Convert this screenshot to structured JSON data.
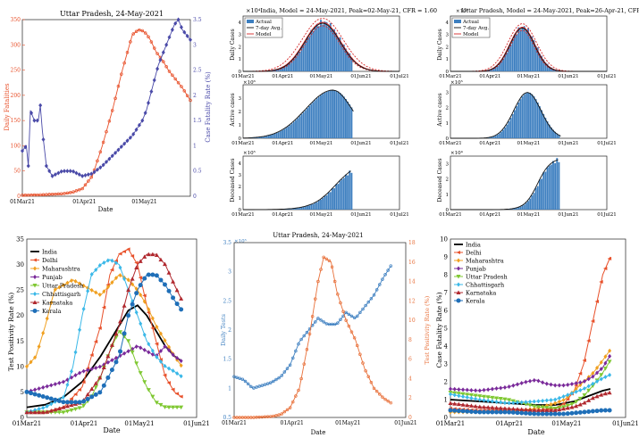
{
  "panel_a": {
    "title": "Uttar Pradesh, 24-May-2021",
    "xlabel": "Date",
    "ylabel_left": "Daily Fatalities",
    "ylabel_right": "Case Fatality Rate (%)",
    "xticks": [
      "01Mar21",
      "01Apr21",
      "01May21"
    ],
    "yticks_left": [
      "0",
      "50",
      "100",
      "150",
      "200",
      "250",
      "300",
      "350"
    ],
    "yticks_right": [
      "0",
      "0.5",
      "1",
      "1.5",
      "2",
      "2.5",
      "3",
      "3.5"
    ]
  },
  "panel_b": {
    "top_title": "×10⁴India, Model = 24-May-2021, Peak=02-May-21, CFR = 1.60",
    "sub_ylabels": [
      "Daily Cases",
      "Active cases",
      "Deceased Cases"
    ],
    "exponents": [
      "×10⁶",
      "×10⁵"
    ],
    "yticks_top": [
      "0",
      "1",
      "2",
      "3",
      "4"
    ],
    "yticks_mid": [
      "0",
      "1",
      "2",
      "3"
    ],
    "yticks_bot": [
      "0",
      "1",
      "2",
      "3",
      "4"
    ],
    "xticks": [
      "01Mar21",
      "01Apr21",
      "01May21",
      "01Jun21",
      "01Jul21"
    ],
    "legend": [
      "Actual",
      "7-day Avg.",
      "Model"
    ]
  },
  "panel_c": {
    "top_title": "Uttar Pradesh, Model = 24-May-2021, Peak=26-Apr-21, CFR = 3.16",
    "top_exponent": "×10⁴",
    "sub_ylabels": [
      "Daily Cases",
      "Active cases",
      "Deceased Cases"
    ],
    "exponents": [
      "×10⁵",
      "×10⁴"
    ],
    "yticks_top": [
      "0",
      "1",
      "2",
      "3",
      "4"
    ],
    "yticks_mid": [
      "0",
      "1",
      "2",
      "3"
    ],
    "yticks_bot": [
      "0",
      "1",
      "2",
      "3"
    ],
    "xticks": [
      "01Mar21",
      "01Apr21",
      "01May21",
      "01Jun21",
      "01Jul21"
    ],
    "legend": [
      "Actual",
      "7-day Avg.",
      "Model"
    ]
  },
  "panel_d": {
    "xlabel": "Date",
    "ylabel": "Test Positivity Rate (%)",
    "xticks": [
      "01Mar21",
      "01Apr21",
      "01May21",
      "01Jun21"
    ],
    "yticks": [
      "0",
      "5",
      "10",
      "15",
      "20",
      "25",
      "30",
      "35"
    ]
  },
  "panel_e": {
    "title": "Uttar Pradesh, 24-May-2021",
    "xlabel": "Date",
    "ylabel_left": "Daily Tests",
    "ylabel_right": "Test Positivity Rate (%)",
    "exponent": "×10⁵",
    "xticks": [
      "01Mar21",
      "01Apr21",
      "01May21",
      "01Jun21"
    ],
    "yticks_left": [
      "0.5",
      "1",
      "1.5",
      "2",
      "2.5",
      "3",
      "3.5"
    ],
    "yticks_right": [
      "0",
      "2",
      "4",
      "6",
      "8",
      "10",
      "12",
      "14",
      "16",
      "18"
    ]
  },
  "panel_f": {
    "xlabel": "Date",
    "ylabel": "Case Fatality Rate (%)",
    "xticks": [
      "01Mar21",
      "01Apr21",
      "01May21",
      "01Jun21"
    ],
    "yticks": [
      "0",
      "1",
      "2",
      "3",
      "4",
      "5",
      "6",
      "7",
      "8",
      "9",
      "10"
    ]
  },
  "colors": {
    "India": "#000000",
    "Delhi": "#e8502a",
    "Maharashtra": "#f0a020",
    "Punjab": "#7a2a9a",
    "Uttar Pradesh": "#7fc832",
    "Chhattisgarh": "#3ab8e8",
    "Karnataka": "#b0282e",
    "Kerala": "#1f6fb8",
    "fatality": "#e8502a",
    "cfr": "#4a4aa8",
    "bar": "#3d7fc0",
    "model": "#d62728",
    "tests": "#3d7fc0",
    "tpr": "#e8703a"
  },
  "chart_data": [
    {
      "type": "line",
      "title": "Uttar Pradesh, 24-May-2021",
      "xlabel": "Date",
      "ylabel": "Daily Fatalities",
      "y2label": "Case Fatality Rate (%)",
      "x_range": [
        "2021-03-01",
        "2021-05-24"
      ],
      "ylim": [
        0,
        350
      ],
      "y2lim": [
        0,
        3.5
      ],
      "series": [
        {
          "name": "",
          "axis": "left",
          "day": [
            0,
            10,
            20,
            25,
            30,
            35,
            40,
            45,
            50,
            55,
            58,
            60,
            62,
            64,
            67,
            70,
            73,
            76,
            80,
            84
          ],
          "values": [
            2,
            3,
            5,
            8,
            15,
            40,
            100,
            170,
            250,
            320,
            330,
            328,
            322,
            310,
            285,
            270,
            250,
            235,
            215,
            190
          ]
        },
        {
          "name": "",
          "axis": "right",
          "day": [
            0,
            2,
            3,
            4,
            6,
            8,
            9,
            10,
            12,
            15,
            20,
            25,
            30,
            35,
            40,
            45,
            50,
            55,
            60,
            62,
            64,
            66,
            68,
            70,
            72,
            74,
            76,
            78,
            80,
            82,
            84
          ],
          "values": [
            0.9,
            1.0,
            0.6,
            1.7,
            1.5,
            1.5,
            1.8,
            1.3,
            0.6,
            0.4,
            0.5,
            0.5,
            0.4,
            0.45,
            0.6,
            0.8,
            1.0,
            1.2,
            1.5,
            1.7,
            2.0,
            2.3,
            2.6,
            2.8,
            3.0,
            3.2,
            3.4,
            3.5,
            3.3,
            3.2,
            3.1
          ]
        }
      ]
    },
    {
      "type": "bar",
      "title": "×10⁴India, Model = 24-May-2021, Peak=02-May-21, CFR = 1.60",
      "ylabel": "Daily Cases",
      "x_range": [
        "2021-03-01",
        "2021-07-01"
      ],
      "ylim": [
        0,
        4.5
      ],
      "peak": 4.0,
      "series": [
        {
          "name": "Actual"
        },
        {
          "name": "7-day Avg."
        },
        {
          "name": "Model"
        }
      ]
    },
    {
      "type": "bar",
      "title": "Uttar Pradesh, Model = 24-May-2021, Peak=26-Apr-21, CFR = 3.16",
      "ylabel": "Daily Cases",
      "x_range": [
        "2021-03-01",
        "2021-07-01"
      ],
      "ylim": [
        0,
        4.5
      ],
      "peak": 3.6,
      "series": [
        {
          "name": "Actual"
        },
        {
          "name": "7-day Avg."
        },
        {
          "name": "Model"
        }
      ]
    },
    {
      "type": "line",
      "xlabel": "Date",
      "ylabel": "Test Positivity Rate (%)",
      "x_range": [
        "2021-03-01",
        "2021-06-01"
      ],
      "ylim": [
        0,
        35
      ],
      "series": [
        {
          "name": "India",
          "day": [
            0,
            10,
            20,
            30,
            40,
            50,
            55,
            60,
            65,
            70,
            75,
            80,
            84
          ],
          "values": [
            2,
            2.5,
            4,
            7,
            12,
            18,
            21,
            22,
            20,
            17,
            14,
            12,
            11
          ]
        },
        {
          "name": "Delhi",
          "day": [
            0,
            10,
            20,
            30,
            40,
            45,
            50,
            55,
            60,
            65,
            70,
            75,
            80,
            84
          ],
          "values": [
            1,
            1,
            2,
            6,
            18,
            28,
            32,
            33,
            30,
            22,
            15,
            8,
            5,
            4
          ]
        },
        {
          "name": "Maharashtra",
          "day": [
            0,
            5,
            10,
            15,
            20,
            25,
            30,
            35,
            40,
            45,
            50,
            55,
            60,
            65,
            70,
            75,
            80,
            84
          ],
          "values": [
            10,
            12,
            18,
            25,
            26,
            27,
            26,
            25,
            24,
            26,
            28,
            27,
            25,
            22,
            18,
            15,
            12,
            10
          ]
        },
        {
          "name": "Punjab",
          "day": [
            0,
            10,
            20,
            30,
            40,
            50,
            55,
            60,
            65,
            70,
            75,
            80,
            84
          ],
          "values": [
            5,
            6,
            7,
            9,
            10,
            12,
            13,
            14,
            13,
            12,
            14,
            12,
            11
          ]
        },
        {
          "name": "Uttar Pradesh",
          "day": [
            0,
            10,
            20,
            30,
            35,
            40,
            45,
            50,
            55,
            60,
            65,
            70,
            75,
            80,
            84
          ],
          "values": [
            1,
            1,
            1,
            2,
            4,
            8,
            13,
            17,
            15,
            10,
            6,
            3,
            2,
            2,
            2
          ]
        },
        {
          "name": "Chhattisgarh",
          "day": [
            0,
            10,
            20,
            25,
            30,
            35,
            40,
            45,
            50,
            55,
            60,
            65,
            70,
            75,
            80,
            84
          ],
          "values": [
            1,
            2,
            4,
            10,
            20,
            28,
            30,
            31,
            30,
            25,
            20,
            15,
            12,
            10,
            9,
            8
          ]
        },
        {
          "name": "Karnataka",
          "day": [
            0,
            10,
            20,
            30,
            40,
            50,
            55,
            60,
            65,
            70,
            75,
            80,
            84
          ],
          "values": [
            1,
            1,
            2,
            3,
            8,
            18,
            25,
            30,
            32,
            32,
            30,
            26,
            23
          ]
        },
        {
          "name": "Kerala",
          "day": [
            0,
            10,
            20,
            30,
            40,
            50,
            55,
            60,
            65,
            70,
            75,
            80,
            84
          ],
          "values": [
            5,
            4,
            3,
            3,
            5,
            12,
            20,
            25,
            28,
            28,
            26,
            23,
            21
          ]
        }
      ]
    },
    {
      "type": "line",
      "title": "Uttar Pradesh, 24-May-2021",
      "xlabel": "Date",
      "ylabel": "Daily Tests",
      "y2label": "Test Positivity Rate (%)",
      "x_range": [
        "2021-03-01",
        "2021-06-01"
      ],
      "ylim": [
        0.5,
        3.5
      ],
      "y2lim": [
        0,
        18
      ],
      "series": [
        {
          "name": "",
          "axis": "left",
          "day": [
            0,
            5,
            10,
            15,
            20,
            25,
            30,
            35,
            40,
            45,
            50,
            55,
            60,
            65,
            70,
            75,
            80,
            84
          ],
          "values": [
            1.2,
            1.15,
            1.0,
            1.05,
            1.1,
            1.2,
            1.4,
            1.8,
            2.0,
            2.2,
            2.1,
            2.1,
            2.3,
            2.2,
            2.4,
            2.6,
            2.9,
            3.1
          ]
        },
        {
          "name": "",
          "axis": "right",
          "day": [
            0,
            10,
            20,
            25,
            30,
            35,
            40,
            45,
            48,
            52,
            55,
            60,
            65,
            70,
            75,
            80,
            84
          ],
          "values": [
            0,
            0,
            0.1,
            0.3,
            1,
            3,
            8,
            14,
            16.5,
            16,
            13,
            10,
            8,
            5,
            3,
            2,
            1.5
          ]
        }
      ]
    },
    {
      "type": "line",
      "xlabel": "Date",
      "ylabel": "Case Fatality Rate (%)",
      "x_range": [
        "2021-03-01",
        "2021-06-01"
      ],
      "ylim": [
        0,
        10
      ],
      "series": [
        {
          "name": "India",
          "day": [
            0,
            15,
            30,
            45,
            55,
            60,
            65,
            70,
            75,
            80,
            84
          ],
          "values": [
            1.0,
            0.9,
            0.8,
            0.7,
            0.7,
            0.8,
            0.9,
            1.1,
            1.3,
            1.5,
            1.6
          ]
        },
        {
          "name": "Delhi",
          "day": [
            0,
            15,
            30,
            45,
            55,
            60,
            65,
            70,
            72,
            75,
            78,
            80,
            82,
            84
          ],
          "values": [
            0.5,
            0.4,
            0.4,
            0.4,
            0.5,
            0.8,
            1.5,
            3.0,
            4.0,
            5.5,
            7.0,
            8.0,
            8.5,
            9.0
          ]
        },
        {
          "name": "Maharashtra",
          "day": [
            0,
            15,
            30,
            45,
            55,
            60,
            65,
            70,
            75,
            80,
            84
          ],
          "values": [
            0.3,
            0.3,
            0.3,
            0.5,
            0.8,
            1.0,
            1.5,
            2.0,
            2.5,
            3.2,
            3.8
          ]
        },
        {
          "name": "Punjab",
          "day": [
            0,
            15,
            30,
            40,
            45,
            50,
            55,
            60,
            65,
            70,
            75,
            80,
            84
          ],
          "values": [
            1.6,
            1.5,
            1.7,
            2.0,
            2.1,
            1.9,
            1.8,
            1.8,
            1.9,
            2.0,
            2.3,
            2.8,
            3.5
          ]
        },
        {
          "name": "Uttar Pradesh",
          "day": [
            0,
            15,
            30,
            45,
            55,
            60,
            65,
            70,
            75,
            80,
            84
          ],
          "values": [
            1.4,
            1.2,
            1.0,
            0.6,
            0.5,
            0.6,
            0.8,
            1.2,
            1.8,
            2.5,
            3.2
          ]
        },
        {
          "name": "Chhattisgarh",
          "day": [
            0,
            15,
            30,
            45,
            55,
            60,
            65,
            70,
            75,
            80,
            84
          ],
          "values": [
            1.3,
            1.0,
            0.8,
            0.9,
            1.0,
            1.2,
            1.4,
            1.6,
            1.9,
            2.2,
            2.4
          ]
        },
        {
          "name": "Karnataka",
          "day": [
            0,
            15,
            30,
            45,
            55,
            60,
            65,
            70,
            75,
            80,
            84
          ],
          "values": [
            0.8,
            0.6,
            0.5,
            0.4,
            0.4,
            0.5,
            0.6,
            0.8,
            1.1,
            1.3,
            1.4
          ]
        },
        {
          "name": "Kerala",
          "day": [
            0,
            15,
            30,
            45,
            55,
            60,
            65,
            70,
            75,
            80,
            84
          ],
          "values": [
            0.4,
            0.3,
            0.3,
            0.2,
            0.2,
            0.2,
            0.25,
            0.3,
            0.35,
            0.4,
            0.4
          ]
        }
      ]
    }
  ]
}
